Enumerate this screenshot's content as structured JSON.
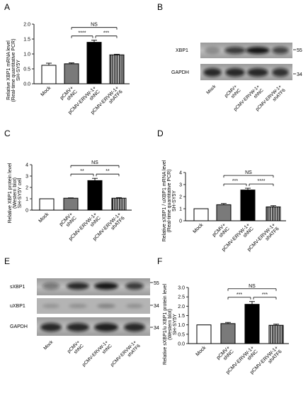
{
  "panels": {
    "A": {
      "letter": "A",
      "cell": "SH-SY5Y",
      "ylabel1": "Relative XBP1 mRNA level",
      "ylabel2": "(Real-time quantitative PCR)"
    },
    "B": {
      "letter": "B",
      "marker_top": "55",
      "marker_bottom": "34",
      "bands": [
        "XBP1",
        "GAPDH"
      ]
    },
    "C": {
      "letter": "C",
      "cell": "SH-SY5Y cell",
      "ylabel1": "Relative XBP1 protein level",
      "ylabel2": "(Western blot)"
    },
    "D": {
      "letter": "D",
      "cell": "SH-SY5Y",
      "ylabel1": "Relative sXBP1 / uXBP1 mRNA level",
      "ylabel2": "(Real-time quantitative PCR)"
    },
    "E": {
      "letter": "E",
      "marker_top": "55",
      "marker_mid": "34",
      "marker_bottom": "34",
      "bands": [
        "sXBP1",
        "uXBP1",
        "GAPDH"
      ]
    },
    "F": {
      "letter": "F",
      "cell": "SH-SY5Y",
      "ylabel1": "Relative sXBP1/u XBP1 protein level",
      "ylabel2": "(Western blot)"
    }
  },
  "lane_labels": [
    [
      "Mock"
    ],
    [
      "pCMV+",
      "shNC"
    ],
    [
      "pCMV-ERVW-1+",
      "shNC"
    ],
    [
      "pCMV-ERVW-1+",
      "shATF6"
    ]
  ],
  "chart_data": [
    {
      "panel": "A",
      "type": "bar",
      "categories": [
        "Mock",
        "pCMV+ shNC",
        "pCMV-ERVW-1+ shNC",
        "pCMV-ERVW-1+ shATF6"
      ],
      "values": [
        0.62,
        0.67,
        1.39,
        0.97
      ],
      "errors": [
        0.07,
        0.03,
        0.07,
        0.02
      ],
      "ylim": [
        0,
        2.0
      ],
      "yticks": [
        "0.0",
        "0.5",
        "1.0",
        "1.5",
        "2.0"
      ],
      "significance": [
        {
          "from": 1,
          "to": 3,
          "label": "NS"
        },
        {
          "from": 1,
          "to": 2,
          "label": "****"
        },
        {
          "from": 2,
          "to": 3,
          "label": "***"
        }
      ]
    },
    {
      "panel": "C",
      "type": "bar",
      "categories": [
        "Mock",
        "pCMV+ shNC",
        "pCMV-ERVW-1+ shNC",
        "pCMV-ERVW-1+ shATF6"
      ],
      "values": [
        1.0,
        1.05,
        2.6,
        1.05
      ],
      "errors": [
        0.0,
        0.03,
        0.2,
        0.05
      ],
      "ylim": [
        0,
        4
      ],
      "yticks": [
        "0",
        "1",
        "2",
        "3",
        "4"
      ],
      "significance": [
        {
          "from": 1,
          "to": 3,
          "label": "NS"
        },
        {
          "from": 1,
          "to": 2,
          "label": "**"
        },
        {
          "from": 2,
          "to": 3,
          "label": "**"
        }
      ]
    },
    {
      "panel": "D",
      "type": "bar",
      "categories": [
        "Mock",
        "pCMV+ shNC",
        "pCMV-ERVW-1+ shNC",
        "pCMV-ERVW-1+ shATF6"
      ],
      "values": [
        1.0,
        1.33,
        2.55,
        1.15
      ],
      "errors": [
        0.0,
        0.1,
        0.15,
        0.1
      ],
      "ylim": [
        0,
        4
      ],
      "yticks": [
        "0",
        "1",
        "2",
        "3",
        "4"
      ],
      "significance": [
        {
          "from": 1,
          "to": 3,
          "label": "NS"
        },
        {
          "from": 1,
          "to": 2,
          "label": "***"
        },
        {
          "from": 2,
          "to": 3,
          "label": "****"
        }
      ]
    },
    {
      "panel": "F",
      "type": "bar",
      "categories": [
        "Mock",
        "pCMV+ shNC",
        "pCMV-ERVW-1+ shNC",
        "pCMV-ERVW-1+ shATF6"
      ],
      "values": [
        1.0,
        1.07,
        2.1,
        0.98
      ],
      "errors": [
        0.0,
        0.06,
        0.15,
        0.06
      ],
      "ylim": [
        0,
        3.0
      ],
      "yticks": [
        "0.0",
        "0.5",
        "1.0",
        "1.5",
        "2.0",
        "2.5",
        "3.0"
      ],
      "significance": [
        {
          "from": 1,
          "to": 3,
          "label": "NS"
        },
        {
          "from": 1,
          "to": 2,
          "label": "***"
        },
        {
          "from": 2,
          "to": 3,
          "label": "***"
        }
      ]
    }
  ],
  "colors": {
    "black": "#000000",
    "gray": "#7a7a7a",
    "white": "#ffffff"
  }
}
